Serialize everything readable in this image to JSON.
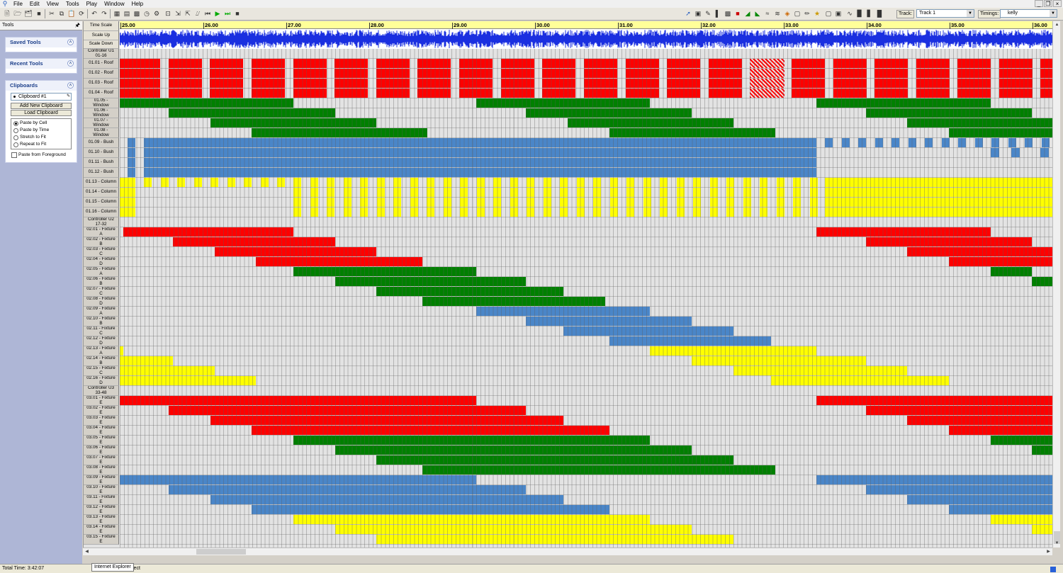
{
  "menu": {
    "items": [
      "File",
      "Edit",
      "View",
      "Tools",
      "Play",
      "Window",
      "Help"
    ]
  },
  "toolbar": {
    "track_label": "Track:",
    "track_value": "Track 1",
    "timings_label": "Timings:",
    "timings_value": "kelly"
  },
  "tools_panel": {
    "title": "Tools",
    "saved_tools": "Saved Tools",
    "recent_tools": "Recent Tools",
    "clipboards": "Clipboards",
    "clipboard_selected": "Clipboard #1",
    "add_clipboard": "Add New Clipboard",
    "load_clipboard": "Load Clipboard",
    "paste_options": [
      "Paste by Cell",
      "Paste by Time",
      "Stretch to Fit",
      "Repeat to Fit"
    ],
    "paste_selected": "Paste by Cell",
    "paste_foreground": "Paste from Foreground"
  },
  "grid": {
    "header_buttons": [
      "Time Scale",
      "Scale Up",
      "Scale Down"
    ],
    "time_ticks": [
      "25.00",
      "26.00",
      "27.00",
      "28.00",
      "29.00",
      "30.00",
      "31.00",
      "32.00",
      "33.00",
      "34.00",
      "35.00",
      "36.00"
    ],
    "rows": [
      {
        "label": "Controller U1\n01-16",
        "type": "ctl"
      },
      {
        "label": "01.01 - Roof"
      },
      {
        "label": "01.02 - Roof"
      },
      {
        "label": "01.03 - Roof"
      },
      {
        "label": "01.04 - Roof"
      },
      {
        "label": "01.05 -\nWindow"
      },
      {
        "label": "01.06 -\nWindow"
      },
      {
        "label": "01.07 -\nWindow"
      },
      {
        "label": "01.08 -\nWindow"
      },
      {
        "label": "01.09 - Bush"
      },
      {
        "label": "01.10 - Bush"
      },
      {
        "label": "01.11 - Bush"
      },
      {
        "label": "01.12 - Bush"
      },
      {
        "label": "01.13 - Column"
      },
      {
        "label": "01.14 - Column"
      },
      {
        "label": "01.15 - Column"
      },
      {
        "label": "01.16 - Column"
      },
      {
        "label": "Controller U2\n17-32",
        "type": "ctl"
      },
      {
        "label": "02.01 - Fixture\nA"
      },
      {
        "label": "02.02 - Fixture\nB"
      },
      {
        "label": "02.03 - Fixture\nC"
      },
      {
        "label": "02.04 - Fixture\nD"
      },
      {
        "label": "02.05 - Fixture\nA"
      },
      {
        "label": "02.06 - Fixture\nB"
      },
      {
        "label": "02.07 - Fixture\nC"
      },
      {
        "label": "02.08 - Fixture\nD"
      },
      {
        "label": "02.09 - Fixture\nA"
      },
      {
        "label": "02.10 - Fixture\nB"
      },
      {
        "label": "02.11 - Fixture\nC"
      },
      {
        "label": "02.12 - Fixture\nD"
      },
      {
        "label": "02.13 - Fixture\nA"
      },
      {
        "label": "02.14 - Fixture\nB"
      },
      {
        "label": "02.15 - Fixture\nC"
      },
      {
        "label": "02.16 - Fixture\nD"
      },
      {
        "label": "Controller U3\n33-48",
        "type": "ctl"
      },
      {
        "label": "03.01 - Fixture\nE"
      },
      {
        "label": "03.02 - Fixture\nE"
      },
      {
        "label": "03.03 - Fixture\nE"
      },
      {
        "label": "03.04 - Fixture\nE"
      },
      {
        "label": "03.05 - Fixture\nE"
      },
      {
        "label": "03.06 - Fixture\nE"
      },
      {
        "label": "03.07 - Fixture\nE"
      },
      {
        "label": "03.08 - Fixture\nE"
      },
      {
        "label": "03.09 - Fixture\nE"
      },
      {
        "label": "03.10 - Fixture\nE"
      },
      {
        "label": "03.11 - Fixture\nE"
      },
      {
        "label": "03.12 - Fixture\nE"
      },
      {
        "label": "03.13 - Fixture\nE"
      },
      {
        "label": "03.14 - Fixture\nE"
      },
      {
        "label": "03.15 - Fixture\nE"
      }
    ]
  },
  "colors": {
    "red": "#ff0000",
    "green": "#008000",
    "blue": "#4a86c8",
    "yellow": "#ffff00",
    "bg": "#e3e3e3"
  },
  "status": {
    "total_time": "Total Time: 3:42:07",
    "tooltip": "Internet Explorer",
    "mode": "lect"
  }
}
